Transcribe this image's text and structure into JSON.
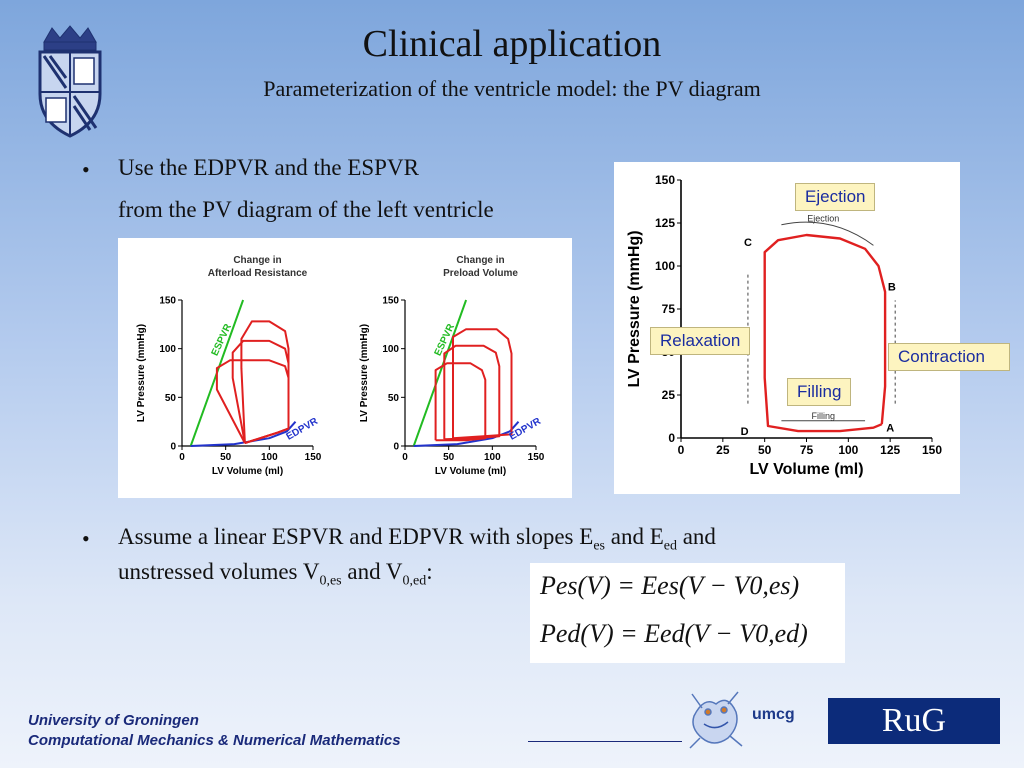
{
  "title": "Clinical application",
  "subtitle": "Parameterization of the ventricle model: the PV diagram",
  "bullet_glyph": "•",
  "bullets": {
    "b1_line1": "Use the EDPVR and the ESPVR",
    "b1_line2": "from the PV diagram of the left ventricle",
    "b2_part1": "Assume a linear ESPVR and EDPVR with slopes E",
    "b2_sub1": "es",
    "b2_part2": " and E",
    "b2_sub2": "ed",
    "b2_part3": " and",
    "b2_line2_part1": "unstressed volumes V",
    "b2_line2_sub1": "0,es",
    "b2_line2_part2": " and V",
    "b2_line2_sub2": "0,ed",
    "b2_line2_part3": ":"
  },
  "chart_data": [
    {
      "type": "line",
      "title": "Change in Afterload Resistance",
      "xlabel": "LV Volume (ml)",
      "ylabel": "LV Pressure (mmHg)",
      "xlim": [
        0,
        150
      ],
      "ylim": [
        0,
        150
      ],
      "xticks": [
        "0",
        "50",
        "100",
        "150"
      ],
      "yticks": [
        "0",
        "50",
        "100",
        "150"
      ],
      "annotations": [
        "ESPVR",
        "EDPVR"
      ],
      "series": [
        {
          "name": "ESPVR",
          "x": [
            10,
            70
          ],
          "y": [
            0,
            150
          ]
        },
        {
          "name": "EDPVR",
          "x": [
            10,
            60,
            100,
            120,
            130
          ],
          "y": [
            0,
            2,
            8,
            15,
            25
          ]
        },
        {
          "x": [
            72,
            68,
            68,
            80,
            100,
            118,
            122,
            122,
            110,
            72
          ],
          "y": [
            3,
            80,
            110,
            128,
            128,
            118,
            100,
            18,
            14,
            3
          ]
        },
        {
          "x": [
            72,
            58,
            58,
            70,
            100,
            118,
            122,
            122,
            110,
            72
          ],
          "y": [
            3,
            70,
            96,
            108,
            108,
            100,
            85,
            18,
            14,
            3
          ]
        },
        {
          "x": [
            72,
            40,
            40,
            55,
            100,
            118,
            122,
            122,
            110,
            72
          ],
          "y": [
            3,
            58,
            80,
            88,
            88,
            82,
            70,
            18,
            14,
            3
          ]
        }
      ]
    },
    {
      "type": "line",
      "title": "Change in Preload Volume",
      "xlabel": "LV Volume (ml)",
      "ylabel": "LV Pressure (mmHg)",
      "xlim": [
        0,
        150
      ],
      "ylim": [
        0,
        150
      ],
      "xticks": [
        "0",
        "50",
        "100",
        "150"
      ],
      "yticks": [
        "0",
        "50",
        "100",
        "150"
      ],
      "annotations": [
        "ESPVR",
        "EDPVR"
      ],
      "series": [
        {
          "name": "ESPVR",
          "x": [
            10,
            70
          ],
          "y": [
            0,
            150
          ]
        },
        {
          "name": "EDPVR",
          "x": [
            10,
            60,
            100,
            120,
            130
          ],
          "y": [
            0,
            2,
            8,
            15,
            25
          ]
        },
        {
          "x": [
            55,
            55,
            70,
            105,
            118,
            122,
            122,
            90,
            55
          ],
          "y": [
            8,
            112,
            120,
            120,
            110,
            95,
            12,
            10,
            8
          ]
        },
        {
          "x": [
            45,
            45,
            58,
            90,
            104,
            108,
            108,
            80,
            45
          ],
          "y": [
            7,
            95,
            103,
            103,
            96,
            82,
            10,
            8,
            7
          ]
        },
        {
          "x": [
            35,
            35,
            48,
            75,
            88,
            92,
            92,
            70,
            35
          ],
          "y": [
            6,
            78,
            85,
            85,
            78,
            68,
            8,
            6,
            6
          ]
        }
      ]
    },
    {
      "type": "line",
      "xlabel": "LV Volume (ml)",
      "ylabel": "LV Pressure (mmHg)",
      "xlim": [
        0,
        150
      ],
      "ylim": [
        0,
        150
      ],
      "xticks": [
        "0",
        "25",
        "50",
        "75",
        "100",
        "125",
        "150"
      ],
      "yticks": [
        "0",
        "25",
        "50",
        "75",
        "100",
        "125",
        "150"
      ],
      "point_labels": [
        "A",
        "B",
        "C",
        "D"
      ],
      "phase_labels": [
        "Ejection",
        "Filling"
      ],
      "series": [
        {
          "x": [
            120,
            122,
            122,
            118,
            110,
            95,
            75,
            58,
            50,
            50,
            52,
            70,
            95,
            115,
            120
          ],
          "y": [
            8,
            30,
            85,
            100,
            110,
            116,
            118,
            115,
            108,
            35,
            7,
            4,
            4,
            6,
            8
          ]
        }
      ]
    }
  ],
  "callouts": {
    "ejection": "Ejection",
    "relaxation": "Relaxation",
    "contraction": "Contraction",
    "filling": "Filling"
  },
  "formulas": {
    "line1": "Pes(V) = Ees(V − V0,es)",
    "line2": "Ped(V) = Eed(V − V0,ed)"
  },
  "footer": {
    "line1": "University of Groningen",
    "line2": "Computational Mechanics & Numerical Mathematics",
    "umcg": "umcg",
    "rug": "RuG"
  },
  "colors": {
    "loops": "#e02020",
    "espvr": "#22bb22",
    "edpvr": "#2233cc",
    "callout_bg": "#fdf4c0",
    "footer_blue": "#1a2a7a"
  }
}
